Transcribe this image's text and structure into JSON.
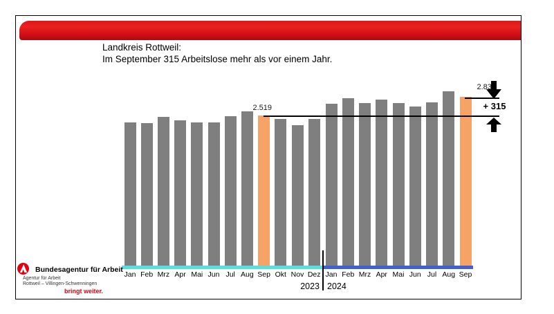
{
  "header": {
    "title_line1": "Landkreis Rottweil:",
    "title_line2": "Im September 315 Arbeitslose mehr als vor einem Jahr."
  },
  "chart_data": {
    "type": "bar",
    "title": "Landkreis Rottweil: Im September 315 Arbeitslose mehr als vor einem Jahr.",
    "ylim": [
      0,
      2950
    ],
    "bar_color": "#7f7f7f",
    "highlight_color": "#f7a367",
    "groups": [
      {
        "year": "2023",
        "months": [
          "Jan",
          "Feb",
          "Mrz",
          "Apr",
          "Mai",
          "Jun",
          "Jul",
          "Aug",
          "Sep",
          "Okt",
          "Nov",
          "Dez"
        ],
        "values": [
          2400,
          2390,
          2495,
          2440,
          2400,
          2400,
          2510,
          2590,
          2519,
          2460,
          2360,
          2460
        ],
        "highlight_month": "Sep",
        "underline_color": "#5adde0"
      },
      {
        "year": "2024",
        "months": [
          "Jan",
          "Feb",
          "Mrz",
          "Apr",
          "Mai",
          "Jun",
          "Jul",
          "Aug",
          "Sep"
        ],
        "values": [
          2715,
          2810,
          2735,
          2790,
          2730,
          2675,
          2740,
          2925,
          2834
        ],
        "highlight_month": "Sep",
        "underline_color": "#4060d8"
      }
    ],
    "labeled_points": [
      {
        "year": "2023",
        "month": "Sep",
        "value": 2519,
        "label": "2.519"
      },
      {
        "year": "2024",
        "month": "Sep",
        "value": 2834,
        "label": "2.834"
      }
    ],
    "annotation": {
      "difference_label": "+ 315"
    }
  },
  "footer": {
    "org_name": "Bundesagentur für Arbeit",
    "agency_line1": "Agentur für Arbeit",
    "agency_line2": "Rottweil – Villingen-Schwenningen",
    "tagline": "bringt weiter."
  },
  "colors": {
    "banner_red": "#d40a10",
    "brand_red": "#e3000f",
    "bar_gray": "#7f7f7f",
    "bar_orange": "#f7a367",
    "underline_2023": "#5adde0",
    "underline_2024": "#4060d8"
  }
}
